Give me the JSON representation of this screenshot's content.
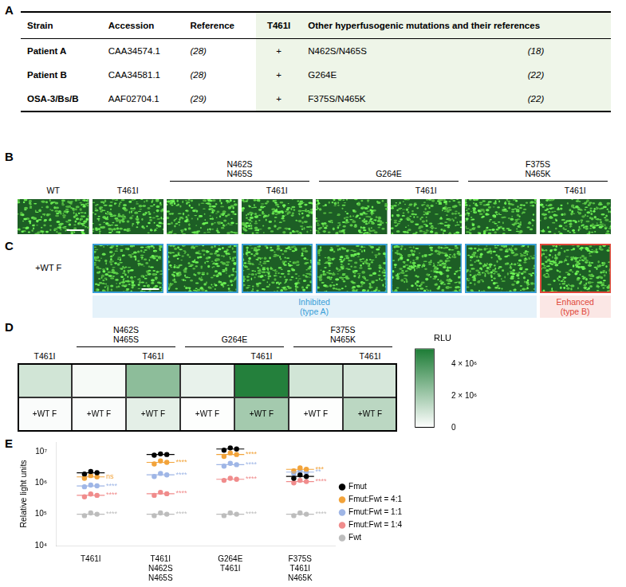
{
  "panels": [
    "A",
    "B",
    "C",
    "D",
    "E"
  ],
  "table": {
    "header": [
      "Strain",
      "Accession",
      "Reference",
      "T461I",
      "Other hyperfusogenic mutations and their references"
    ],
    "rows": [
      [
        "Patient A",
        "CAA34574.1",
        "(28)",
        "+",
        "N462S/N465S",
        "(18)"
      ],
      [
        "Patient B",
        "CAA34581.1",
        "(28)",
        "+",
        "G264E",
        "(22)"
      ],
      [
        "OSA-3/Bs/B",
        "AAF02704.1",
        "(29)",
        "+",
        "F375S/N465K",
        "(22)"
      ]
    ]
  },
  "micrographs": {
    "B": {
      "groups": [
        {
          "columns": [
            "WT"
          ]
        },
        {
          "columns": [
            "T461I"
          ]
        },
        {
          "label": [
            "N462S",
            "N465S"
          ],
          "columns": [
            null,
            "T461I"
          ]
        },
        {
          "label": [
            "G264E"
          ],
          "columns": [
            null,
            "T461I"
          ]
        },
        {
          "label": [
            "F375S",
            "N465K"
          ],
          "columns": [
            null,
            "T461I"
          ]
        }
      ]
    },
    "C": {
      "row_label": "+WT F",
      "classes": [
        {
          "label": [
            "Inhibited",
            "(type A)"
          ],
          "count": 6,
          "color": "#3a9fd8"
        },
        {
          "label": [
            "Enhanced",
            "(type B)"
          ],
          "count": 1,
          "color": "#e0483a"
        }
      ]
    }
  },
  "chart_data": [
    {
      "type": "heatmap",
      "groups": [
        {
          "columns": [
            "T461I"
          ]
        },
        {
          "label": [
            "N462S",
            "N465S"
          ],
          "columns": [
            null,
            "T461I"
          ]
        },
        {
          "label": [
            "G264E"
          ],
          "columns": [
            null,
            "T461I"
          ]
        },
        {
          "label": [
            "F375S",
            "N465K"
          ],
          "columns": [
            null,
            "T461I"
          ]
        }
      ],
      "row_labels": [
        null,
        "+WT F"
      ],
      "cells": [
        [
          1000000,
          200000,
          2500000,
          500000,
          4800000,
          1000000,
          900000
        ],
        [
          100000,
          100000,
          600000,
          50000,
          2000000,
          50000,
          1500000
        ]
      ],
      "colorbar": {
        "label": "RLU",
        "range": [
          0,
          5000000
        ],
        "ticks": [
          0,
          {
            "value": 2000000,
            "label": "2 × 10⁶"
          },
          {
            "value": 4000000,
            "label": "4 × 10⁶"
          }
        ],
        "colors": [
          "#ffffff",
          "#1b7b34"
        ]
      }
    },
    {
      "type": "scatter",
      "categories": [
        [
          "T461I"
        ],
        [
          "T461I",
          "N462S",
          "N465S"
        ],
        [
          "G264E",
          "T461I"
        ],
        [
          "F375S",
          "T461I",
          "N465K"
        ]
      ],
      "ylabel": "Relative light units",
      "log": "y",
      "ylim": [
        10000,
        20000000
      ],
      "yticks": [
        {
          "value": 10000,
          "label": "10⁴"
        },
        {
          "value": 100000,
          "label": "10⁵"
        },
        {
          "value": 1000000,
          "label": "10⁶"
        },
        {
          "value": 10000000,
          "label": "10⁷"
        }
      ],
      "grid": false,
      "legend": "right",
      "series": [
        {
          "name": "Fmut",
          "color": "#000000",
          "values": [
            [
              1900000,
              2300000,
              2100000
            ],
            [
              7600000,
              8400000,
              8000000
            ],
            [
              11000000,
              13000000,
              12000000
            ],
            [
              1400000,
              1800000,
              1600000
            ]
          ],
          "means": [
            2100000,
            8000000,
            12000000,
            1600000
          ],
          "annotations": [
            null,
            null,
            null,
            null
          ]
        },
        {
          "name": "Fmut:Fwt = 4:1",
          "color": "#f2a33a",
          "values": [
            [
              1400000,
              1700000,
              1550000
            ],
            [
              4000000,
              5000000,
              4500000
            ],
            [
              7000000,
              9000000,
              8000000
            ],
            [
              2400000,
              3000000,
              2700000
            ]
          ],
          "means": [
            1550000,
            4500000,
            8000000,
            2700000
          ],
          "annotations": [
            "ns",
            "****",
            "****",
            "***"
          ]
        },
        {
          "name": "Fmut:Fwt = 1:1",
          "color": "#9fb6e6",
          "values": [
            [
              750000,
              850000,
              800000
            ],
            [
              1600000,
              2000000,
              1800000
            ],
            [
              3400000,
              4200000,
              3800000
            ],
            [
              2000000,
              2400000,
              2200000
            ]
          ],
          "means": [
            800000,
            1800000,
            3800000,
            2200000
          ],
          "annotations": [
            "****",
            "****",
            "****",
            "**"
          ]
        },
        {
          "name": "Fmut:Fwt = 1:4",
          "color": "#f08c8c",
          "values": [
            [
              360000,
              440000,
              400000
            ],
            [
              400000,
              500000,
              450000
            ],
            [
              1200000,
              1400000,
              1300000
            ],
            [
              1000000,
              1200000,
              1100000
            ]
          ],
          "means": [
            400000,
            450000,
            1300000,
            1100000
          ],
          "annotations": [
            "****",
            "****",
            "****",
            "****"
          ]
        },
        {
          "name": "Fwt",
          "color": "#bdbdbd",
          "values": [
            [
              90000,
              110000,
              100000
            ],
            [
              90000,
              110000,
              100000
            ],
            [
              90000,
              110000,
              100000
            ],
            [
              90000,
              110000,
              100000
            ]
          ],
          "means": [
            100000,
            100000,
            100000,
            100000
          ],
          "annotations": [
            "****",
            "****",
            "****",
            "****"
          ]
        }
      ]
    }
  ]
}
